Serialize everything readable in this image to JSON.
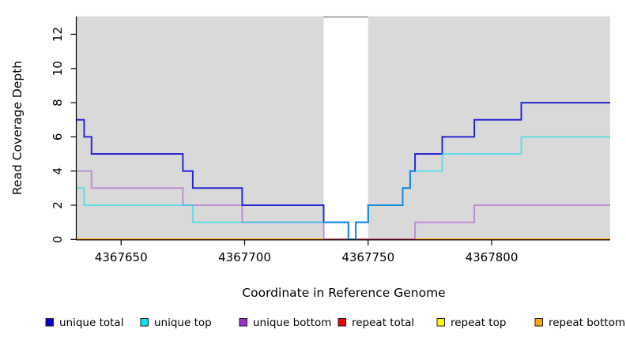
{
  "chart_data": {
    "type": "line",
    "step": true,
    "title": "",
    "xlabel": "Coordinate in Reference Genome",
    "ylabel": "Read Coverage Depth",
    "xlim": [
      4367632,
      4367848
    ],
    "ylim": [
      0,
      13.05
    ],
    "x_ticks": [
      4367650,
      4367700,
      4367750,
      4367800
    ],
    "y_ticks": [
      0,
      2,
      4,
      6,
      8,
      10,
      12
    ],
    "grid": false,
    "legend_position": "bottom",
    "plot_bg": "#d9d9d9",
    "highlight_band": {
      "x0": 4367732,
      "x1": 4367750,
      "fill": "#ffffff",
      "top_border": "#8a8a8a"
    },
    "series": [
      {
        "name": "unique total",
        "legend_color": "#0000cd",
        "line_color": "#2727d3",
        "opacity": 1,
        "width": 2,
        "points": [
          [
            4367632,
            7
          ],
          [
            4367635,
            6
          ],
          [
            4367638,
            5
          ],
          [
            4367675,
            4
          ],
          [
            4367679,
            3
          ],
          [
            4367699,
            2
          ],
          [
            4367732,
            1
          ],
          [
            4367742,
            0
          ],
          [
            4367745,
            1
          ],
          [
            4367750,
            2
          ],
          [
            4367764,
            3
          ],
          [
            4367767,
            4
          ],
          [
            4367769,
            5
          ],
          [
            4367780,
            6
          ],
          [
            4367793,
            7
          ],
          [
            4367812,
            8
          ],
          [
            4367848,
            8
          ]
        ]
      },
      {
        "name": "unique top",
        "legend_color": "#00e5ee",
        "line_color": "#00e0f0",
        "opacity": 0.55,
        "width": 2,
        "points": [
          [
            4367632,
            3
          ],
          [
            4367635,
            2
          ],
          [
            4367679,
            1
          ],
          [
            4367742,
            0
          ],
          [
            4367745,
            1
          ],
          [
            4367750,
            2
          ],
          [
            4367764,
            3
          ],
          [
            4367767,
            4
          ],
          [
            4367780,
            5
          ],
          [
            4367812,
            6
          ],
          [
            4367848,
            6
          ]
        ]
      },
      {
        "name": "unique bottom",
        "legend_color": "#9932cc",
        "line_color": "#bd8fd6",
        "opacity": 1,
        "width": 2,
        "points": [
          [
            4367632,
            4
          ],
          [
            4367638,
            3
          ],
          [
            4367675,
            2
          ],
          [
            4367699,
            1
          ],
          [
            4367732,
            0
          ],
          [
            4367769,
            1
          ],
          [
            4367793,
            2
          ],
          [
            4367848,
            2
          ]
        ]
      },
      {
        "name": "repeat total",
        "legend_color": "#ee0000",
        "line_color": "#dd0000",
        "opacity": 1,
        "width": 2,
        "points": [
          [
            4367632,
            0
          ],
          [
            4367848,
            0
          ]
        ]
      },
      {
        "name": "repeat top",
        "legend_color": "#ffff00",
        "line_color": "#ffff00",
        "opacity": 1,
        "width": 2,
        "points": [
          [
            4367632,
            0
          ],
          [
            4367848,
            0
          ]
        ]
      },
      {
        "name": "repeat bottom",
        "legend_color": "#ffa500",
        "line_color": "#ffa11e",
        "opacity": 1,
        "width": 2.4,
        "points": [
          [
            4367632,
            0
          ],
          [
            4367848,
            0
          ]
        ]
      }
    ],
    "overlay_segments": [
      {
        "desc": "unique-bottom at zero blended over repeat-bottom",
        "color": "#d4517d",
        "y": 0,
        "x0": 4367732,
        "x1": 4367769,
        "width": 2
      }
    ]
  }
}
